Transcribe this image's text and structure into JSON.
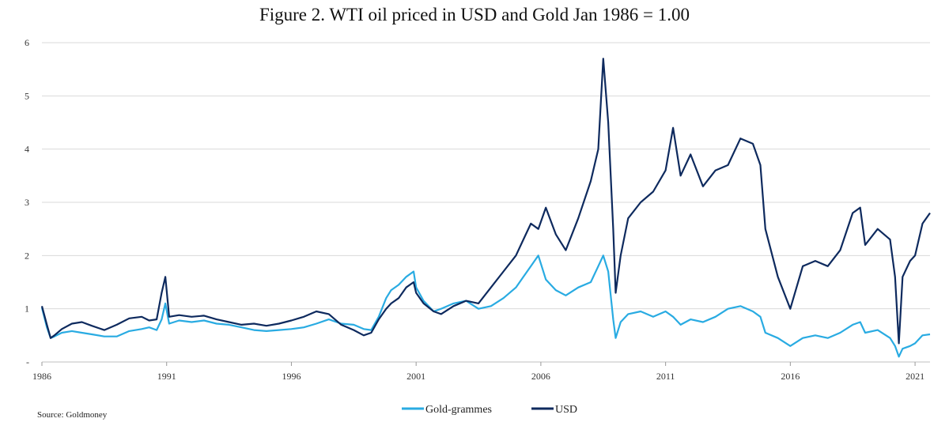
{
  "chart_data": {
    "type": "line",
    "title": "Figure 2. WTI oil priced in USD and Gold Jan 1986 = 1.00",
    "source": "Source: Goldmoney",
    "xlabel": "",
    "ylabel": "",
    "xlim": [
      1986.0,
      2021.6
    ],
    "ylim": [
      0,
      6
    ],
    "x_ticks": [
      1986,
      1991,
      1996,
      2001,
      2006,
      2011,
      2016,
      2021
    ],
    "y_ticks": [
      {
        "value": 0,
        "label": "-"
      },
      {
        "value": 1,
        "label": "1"
      },
      {
        "value": 2,
        "label": "2"
      },
      {
        "value": 3,
        "label": "3"
      },
      {
        "value": 4,
        "label": "4"
      },
      {
        "value": 5,
        "label": "5"
      },
      {
        "value": 6,
        "label": "6"
      }
    ],
    "grid": "horizontal",
    "legend_position": "bottom-center",
    "series": [
      {
        "name": "Gold-grammes",
        "color": "#29abe2",
        "x": [
          1986.0,
          1986.2,
          1986.35,
          1986.5,
          1986.8,
          1987.2,
          1987.6,
          1988.0,
          1988.5,
          1989.0,
          1989.5,
          1990.0,
          1990.3,
          1990.6,
          1990.8,
          1990.95,
          1991.1,
          1991.5,
          1992.0,
          1992.5,
          1993.0,
          1993.5,
          1994.0,
          1994.5,
          1995.0,
          1995.5,
          1996.0,
          1996.5,
          1997.0,
          1997.5,
          1998.0,
          1998.5,
          1998.9,
          1999.2,
          1999.5,
          1999.8,
          2000.0,
          2000.3,
          2000.6,
          2000.9,
          2001.0,
          2001.3,
          2001.7,
          2002.0,
          2002.5,
          2003.0,
          2003.5,
          2004.0,
          2004.5,
          2005.0,
          2005.3,
          2005.6,
          2005.9,
          2006.2,
          2006.6,
          2007.0,
          2007.5,
          2008.0,
          2008.3,
          2008.5,
          2008.7,
          2008.9,
          2009.0,
          2009.2,
          2009.5,
          2010.0,
          2010.5,
          2011.0,
          2011.3,
          2011.6,
          2012.0,
          2012.5,
          2013.0,
          2013.5,
          2014.0,
          2014.5,
          2014.8,
          2015.0,
          2015.5,
          2016.0,
          2016.5,
          2017.0,
          2017.5,
          2018.0,
          2018.5,
          2018.8,
          2019.0,
          2019.5,
          2020.0,
          2020.2,
          2020.35,
          2020.5,
          2020.8,
          2021.0,
          2021.3,
          2021.6
        ],
        "values": [
          1.02,
          0.65,
          0.45,
          0.48,
          0.55,
          0.58,
          0.55,
          0.52,
          0.48,
          0.48,
          0.58,
          0.62,
          0.65,
          0.6,
          0.8,
          1.1,
          0.72,
          0.78,
          0.75,
          0.78,
          0.72,
          0.7,
          0.65,
          0.6,
          0.58,
          0.6,
          0.62,
          0.65,
          0.72,
          0.8,
          0.72,
          0.7,
          0.62,
          0.6,
          0.85,
          1.2,
          1.35,
          1.45,
          1.6,
          1.7,
          1.4,
          1.15,
          0.95,
          1.0,
          1.1,
          1.15,
          1.0,
          1.05,
          1.2,
          1.4,
          1.6,
          1.8,
          2.0,
          1.55,
          1.35,
          1.25,
          1.4,
          1.5,
          1.8,
          2.0,
          1.7,
          0.8,
          0.45,
          0.75,
          0.9,
          0.95,
          0.85,
          0.95,
          0.85,
          0.7,
          0.8,
          0.75,
          0.85,
          1.0,
          1.05,
          0.95,
          0.85,
          0.55,
          0.45,
          0.3,
          0.45,
          0.5,
          0.45,
          0.55,
          0.7,
          0.75,
          0.55,
          0.6,
          0.45,
          0.3,
          0.1,
          0.25,
          0.3,
          0.35,
          0.5,
          0.52
        ]
      },
      {
        "name": "USD",
        "color": "#0e2a5e",
        "x": [
          1986.0,
          1986.2,
          1986.35,
          1986.5,
          1986.8,
          1987.2,
          1987.6,
          1988.0,
          1988.5,
          1989.0,
          1989.5,
          1990.0,
          1990.3,
          1990.6,
          1990.8,
          1990.95,
          1991.1,
          1991.5,
          1992.0,
          1992.5,
          1993.0,
          1993.5,
          1994.0,
          1994.5,
          1995.0,
          1995.5,
          1996.0,
          1996.5,
          1997.0,
          1997.5,
          1998.0,
          1998.5,
          1998.9,
          1999.2,
          1999.5,
          1999.8,
          2000.0,
          2000.3,
          2000.6,
          2000.9,
          2001.0,
          2001.3,
          2001.7,
          2002.0,
          2002.5,
          2003.0,
          2003.5,
          2004.0,
          2004.5,
          2005.0,
          2005.3,
          2005.6,
          2005.9,
          2006.2,
          2006.6,
          2007.0,
          2007.5,
          2008.0,
          2008.3,
          2008.5,
          2008.7,
          2008.9,
          2009.0,
          2009.2,
          2009.5,
          2010.0,
          2010.5,
          2011.0,
          2011.3,
          2011.6,
          2012.0,
          2012.5,
          2013.0,
          2013.5,
          2014.0,
          2014.5,
          2014.8,
          2015.0,
          2015.5,
          2016.0,
          2016.5,
          2017.0,
          2017.5,
          2018.0,
          2018.5,
          2018.8,
          2019.0,
          2019.5,
          2020.0,
          2020.2,
          2020.35,
          2020.5,
          2020.8,
          2021.0,
          2021.3,
          2021.6
        ],
        "values": [
          1.05,
          0.7,
          0.45,
          0.5,
          0.62,
          0.72,
          0.75,
          0.68,
          0.6,
          0.7,
          0.82,
          0.85,
          0.78,
          0.8,
          1.3,
          1.6,
          0.85,
          0.88,
          0.85,
          0.87,
          0.8,
          0.75,
          0.7,
          0.72,
          0.68,
          0.72,
          0.78,
          0.85,
          0.95,
          0.9,
          0.7,
          0.6,
          0.5,
          0.55,
          0.8,
          1.0,
          1.1,
          1.2,
          1.4,
          1.5,
          1.3,
          1.1,
          0.95,
          0.9,
          1.05,
          1.15,
          1.1,
          1.4,
          1.7,
          2.0,
          2.3,
          2.6,
          2.5,
          2.9,
          2.4,
          2.1,
          2.7,
          3.4,
          4.0,
          5.7,
          4.5,
          2.5,
          1.3,
          2.0,
          2.7,
          3.0,
          3.2,
          3.6,
          4.4,
          3.5,
          3.9,
          3.3,
          3.6,
          3.7,
          4.2,
          4.1,
          3.7,
          2.5,
          1.6,
          1.0,
          1.8,
          1.9,
          1.8,
          2.1,
          2.8,
          2.9,
          2.2,
          2.5,
          2.3,
          1.6,
          0.35,
          1.6,
          1.9,
          2.0,
          2.6,
          2.8
        ]
      }
    ]
  }
}
